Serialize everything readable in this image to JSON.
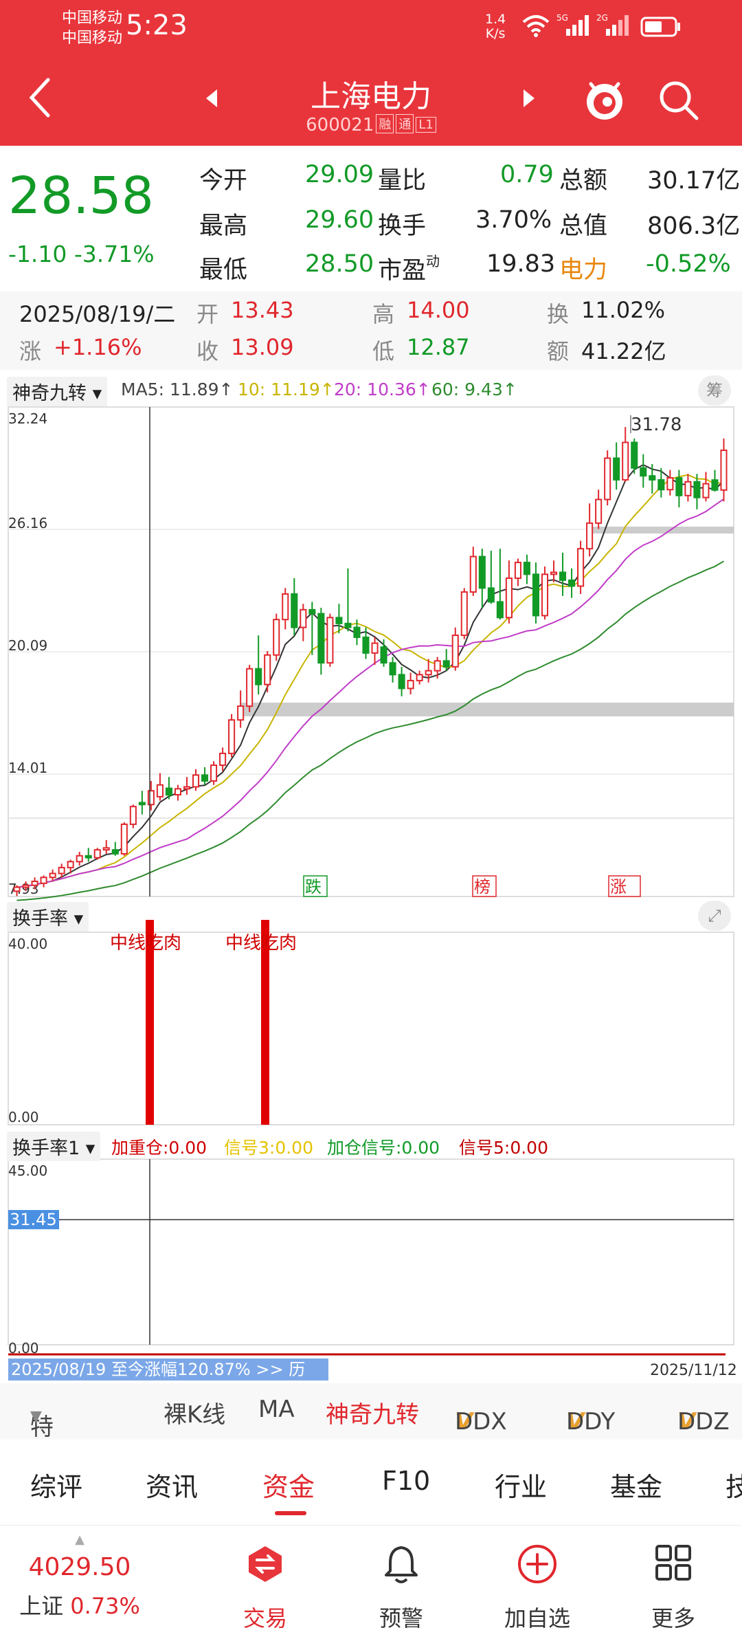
{
  "status_bar": {
    "carrier1": "中国移动",
    "carrier2": "中国移动",
    "time": "5:23",
    "net_speed": "1.4",
    "net_unit": "K/s",
    "sig1_label": "5G",
    "sig2_label": "2G",
    "battery_level": 0.6
  },
  "header": {
    "title": "上海电力",
    "code": "600021",
    "tags": [
      "融",
      "通",
      "L1"
    ]
  },
  "quote": {
    "price": "28.58",
    "change": "-1.10",
    "change_pct": "-3.71%",
    "open_label": "今开",
    "open": "29.09",
    "high_label": "最高",
    "high": "29.60",
    "low_label": "最低",
    "low": "28.50",
    "vol_ratio_label": "量比",
    "vol_ratio": "0.79",
    "turnover_label": "换手",
    "turnover": "3.70%",
    "pe_label": "市盈",
    "pe_sup": "动",
    "pe": "19.83",
    "amount_label": "总额",
    "amount": "30.17亿",
    "mcap_label": "总值",
    "mcap": "806.3亿",
    "sector_label": "电力",
    "sector": "-0.52%"
  },
  "day_info": {
    "date": "2025/08/19/二",
    "open_label": "开",
    "open": "13.43",
    "close_label": "收",
    "close": "13.09",
    "high_label": "高",
    "high": "14.00",
    "low_label": "低",
    "low": "12.87",
    "rise_label": "涨",
    "rise": "+1.16%",
    "turn_label": "换",
    "turn": "11.02%",
    "amount_label": "额",
    "amount": "41.22亿"
  },
  "main_chart": {
    "selector": "神奇九转",
    "ma5": "MA5: 11.89↑",
    "ma10": "10: 11.19↑",
    "ma20": "20: 10.36↑",
    "ma60": "60: 9.43↑",
    "chip_button": "筹",
    "y_ticks": [
      "32.24",
      "26.16",
      "20.09",
      "14.01",
      "7.93"
    ],
    "max_label": "31.78",
    "markers": [
      "跌",
      "榜",
      "涨"
    ],
    "colors": {
      "up": "#e0272d",
      "down": "#129a27",
      "ma5": "#333333",
      "ma10": "#c8b400",
      "ma20": "#c03cc8",
      "ma60": "#2e8b2e"
    }
  },
  "turnover_panel": {
    "selector": "换手率",
    "y_top": "40.00",
    "y_bottom": "0.00",
    "labels": [
      "中线吃肉",
      "中线吃肉"
    ]
  },
  "turnover1_panel": {
    "selector": "换手率1",
    "legend1": "加重仓:0.00",
    "legend2": "信号3:0.00",
    "legend3": "加仓信号:0.00",
    "legend4": "信号5:0.00",
    "y_top": "45.00",
    "y_bottom": "0.00",
    "current_value": "31.45",
    "range_text": "2025/08/19 至今涨幅120.87% >> 历",
    "end_date": "2025/11/12"
  },
  "indicator_tabs": {
    "items": [
      "特色",
      "裸K线",
      "MA",
      "神奇九转",
      "DDX",
      "DDY",
      "DDZ"
    ]
  },
  "section_tabs": {
    "items": [
      "综评",
      "资讯",
      "资金",
      "F10",
      "行业",
      "基金",
      "技"
    ]
  },
  "bottom_nav": {
    "index_value": "4029.50",
    "index_name": "上证",
    "index_change": "0.73%",
    "trade": "交易",
    "alert": "预警",
    "add": "加自选",
    "more": "更多"
  },
  "chart_data": {
    "type": "candlestick",
    "ylim": [
      7.93,
      32.24
    ],
    "candles": [
      [
        8.2,
        8.5,
        7.95,
        8.4
      ],
      [
        8.4,
        8.7,
        8.2,
        8.5
      ],
      [
        8.5,
        8.9,
        8.3,
        8.7
      ],
      [
        8.6,
        9.0,
        8.4,
        8.9
      ],
      [
        8.9,
        9.3,
        8.7,
        9.1
      ],
      [
        9.1,
        9.6,
        8.9,
        9.4
      ],
      [
        9.4,
        9.8,
        9.1,
        9.7
      ],
      [
        9.7,
        10.2,
        9.5,
        10.0
      ],
      [
        10.0,
        10.4,
        9.7,
        9.9
      ],
      [
        9.9,
        10.4,
        9.8,
        10.3
      ],
      [
        10.3,
        10.8,
        10.1,
        10.4
      ],
      [
        10.3,
        10.7,
        10.0,
        10.1
      ],
      [
        10.1,
        11.7,
        10.0,
        11.6
      ],
      [
        11.6,
        12.6,
        11.4,
        12.5
      ],
      [
        12.7,
        13.3,
        12.1,
        12.6
      ],
      [
        12.6,
        13.8,
        12.3,
        13.3
      ],
      [
        13.0,
        14.2,
        12.8,
        13.6
      ],
      [
        13.43,
        14.0,
        12.87,
        13.09
      ],
      [
        13.1,
        13.6,
        12.8,
        13.4
      ],
      [
        13.4,
        14.0,
        13.1,
        13.5
      ],
      [
        13.5,
        14.4,
        13.3,
        14.1
      ],
      [
        14.1,
        14.5,
        13.6,
        13.8
      ],
      [
        13.8,
        14.8,
        13.6,
        14.6
      ],
      [
        14.6,
        15.5,
        14.3,
        15.2
      ],
      [
        15.2,
        17.2,
        15.0,
        16.9
      ],
      [
        16.9,
        18.4,
        16.5,
        17.6
      ],
      [
        17.6,
        19.7,
        17.3,
        19.5
      ],
      [
        19.5,
        21.2,
        18.2,
        18.7
      ],
      [
        18.7,
        20.4,
        18.3,
        20.2
      ],
      [
        20.2,
        22.3,
        19.9,
        22.0
      ],
      [
        22.0,
        23.6,
        21.5,
        23.3
      ],
      [
        23.3,
        24.1,
        21.2,
        21.6
      ],
      [
        21.6,
        22.8,
        20.9,
        22.5
      ],
      [
        22.5,
        22.9,
        20.2,
        22.3
      ],
      [
        22.3,
        22.6,
        19.2,
        19.8
      ],
      [
        19.8,
        22.3,
        19.6,
        22.1
      ],
      [
        22.1,
        22.8,
        21.3,
        21.8
      ],
      [
        21.8,
        24.6,
        21.4,
        21.6
      ],
      [
        21.6,
        22.0,
        20.7,
        21.1
      ],
      [
        21.1,
        21.6,
        20.0,
        20.3
      ],
      [
        20.3,
        21.1,
        19.7,
        20.8
      ],
      [
        20.6,
        21.0,
        19.6,
        19.8
      ],
      [
        19.8,
        20.1,
        18.8,
        19.2
      ],
      [
        19.2,
        19.6,
        18.1,
        18.5
      ],
      [
        18.5,
        19.3,
        18.2,
        18.9
      ],
      [
        18.9,
        19.4,
        18.7,
        19.2
      ],
      [
        19.2,
        20.0,
        18.8,
        19.4
      ],
      [
        19.4,
        20.1,
        19.0,
        19.9
      ],
      [
        19.9,
        20.5,
        19.4,
        19.6
      ],
      [
        19.6,
        21.6,
        19.4,
        21.2
      ],
      [
        21.2,
        23.6,
        21.0,
        23.4
      ],
      [
        23.4,
        25.7,
        23.2,
        25.2
      ],
      [
        25.2,
        25.6,
        22.6,
        23.6
      ],
      [
        23.6,
        25.5,
        22.8,
        22.9
      ],
      [
        22.9,
        25.6,
        22.0,
        22.1
      ],
      [
        22.1,
        25.0,
        21.8,
        24.1
      ],
      [
        24.1,
        25.1,
        23.7,
        24.9
      ],
      [
        24.9,
        25.3,
        23.8,
        24.3
      ],
      [
        24.3,
        24.9,
        21.8,
        22.2
      ],
      [
        22.2,
        24.7,
        22.0,
        24.3
      ],
      [
        24.3,
        25.0,
        23.9,
        24.4
      ],
      [
        24.4,
        25.4,
        23.2,
        24.0
      ],
      [
        24.0,
        24.6,
        23.1,
        23.7
      ],
      [
        23.7,
        26.0,
        23.3,
        25.6
      ],
      [
        25.6,
        27.9,
        25.2,
        26.9
      ],
      [
        26.9,
        28.6,
        26.6,
        28.1
      ],
      [
        28.1,
        30.6,
        27.8,
        30.2
      ],
      [
        30.2,
        31.0,
        28.6,
        29.1
      ],
      [
        29.1,
        31.78,
        29.0,
        31.0
      ],
      [
        31.0,
        31.2,
        29.4,
        29.7
      ],
      [
        29.7,
        30.4,
        28.7,
        29.3
      ],
      [
        29.3,
        29.9,
        28.4,
        29.1
      ],
      [
        29.1,
        29.7,
        28.2,
        28.6
      ],
      [
        28.6,
        29.6,
        28.3,
        29.2
      ],
      [
        29.2,
        29.6,
        27.7,
        28.3
      ],
      [
        28.3,
        29.4,
        28.0,
        29.0
      ],
      [
        29.0,
        29.4,
        27.6,
        28.2
      ],
      [
        28.2,
        29.5,
        28.0,
        28.9
      ],
      [
        29.09,
        29.6,
        28.5,
        28.58
      ],
      [
        28.58,
        31.2,
        28.0,
        30.6
      ]
    ]
  }
}
